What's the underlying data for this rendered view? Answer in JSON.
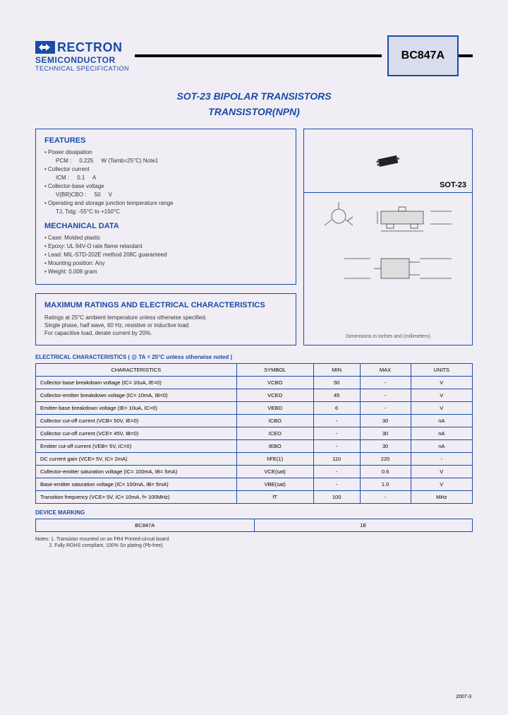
{
  "brand": {
    "name": "RECTRON",
    "sub": "SEMICONDUCTOR",
    "spec": "TECHNICAL SPECIFICATION"
  },
  "part_number": "BC847A",
  "title1": "SOT-23 BIPOLAR TRANSISTORS",
  "title2": "TRANSISTOR(NPN)",
  "features_heading": "FEATURES",
  "features": [
    {
      "main": "Power dissipation",
      "sub": "PCM :     0.225     W (Tamb=25°C) Note1"
    },
    {
      "main": "Collector current",
      "sub": "ICM :     0.1     A"
    },
    {
      "main": "Collector-base voltage",
      "sub": "V(BR)CBO :     50     V"
    },
    {
      "main": "Operating and storage junction temperature range",
      "sub": "TJ, Tstg: -55°C to +150°C"
    }
  ],
  "mech_heading": "MECHANICAL DATA",
  "mech": [
    "Case: Molded plastic",
    "Epoxy: UL 94V-O rate flame retardant",
    "Lead: MIL-STD-202E method 208C guaranteed",
    "Mounting position: Any",
    "Weight: 0.008 gram"
  ],
  "ratings_heading": "MAXIMUM RATINGS AND ELECTRICAL CHARACTERISTICS",
  "ratings_body": [
    "Ratings at 25°C ambient temperature unless otherwise specified.",
    "Single phase, half wave, 60 Hz, resistive or inductive load.",
    "For capacitive load, derate current by 20%."
  ],
  "package_label": "SOT-23",
  "dim_caption": "Dimensions in inches and (millimeters)",
  "char_title": "ELECTRICAL CHARACTERISTICS ( @ TA = 25°C unless otherwise noted )",
  "char_headers": [
    "CHARACTERISTICS",
    "SYMBOL",
    "MIN",
    "MAX",
    "UNITS"
  ],
  "char_rows": [
    [
      "Collector-base breakdown voltage (IC= 10uA, IE=0)",
      "VCBO",
      "50",
      "-",
      "V"
    ],
    [
      "Collector-emitter breakdown voltage (IC= 10mA, IB=0)",
      "VCEO",
      "45",
      "-",
      "V"
    ],
    [
      "Emitter-base breakdown voltage (IE= 10uA, IC=0)",
      "VEBO",
      "6",
      "-",
      "V"
    ],
    [
      "Collector cut-off current (VCB= 50V, IE=0)",
      "ICBO",
      "-",
      "30",
      "nA"
    ],
    [
      "Collector cut-off current (VCE= 45V, IB=0)",
      "ICEO",
      "-",
      "30",
      "nA"
    ],
    [
      "Emitter cut-off current (VEB= 5V, IC=0)",
      "IEBO",
      "-",
      "30",
      "nA"
    ],
    [
      "DC current gain (VCE= 5V, IC= 2mA)",
      "hFE(1)",
      "110",
      "220",
      "-"
    ],
    [
      "Collector-emitter saturation voltage (IC= 100mA, IB= 5mA)",
      "VCE(sat)",
      "-",
      "0.6",
      "V"
    ],
    [
      "Base-emitter saturation voltage (IC= 100mA, IB= 5mA)",
      "VBE(sat)",
      "-",
      "1.0",
      "V"
    ],
    [
      "Transition frequency (VCE= 5V, IC= 10mA, f= 100MHz)",
      "fT",
      "100",
      "-",
      "MHz"
    ]
  ],
  "dev_title": "DEVICE MARKING",
  "dev_mark": [
    "BC847A",
    "1E"
  ],
  "notes": [
    "Notes: 1. Transistor mounted on an FR4 Printed-circuit board.",
    "          2. Fully ROHS compliant, 100% Sn plating (Pb-free)."
  ],
  "footer_date": "2007-3",
  "colors": {
    "brand_blue": "#1a4ba8",
    "bg": "#f0eef4",
    "part_fill": "#d9dced"
  }
}
